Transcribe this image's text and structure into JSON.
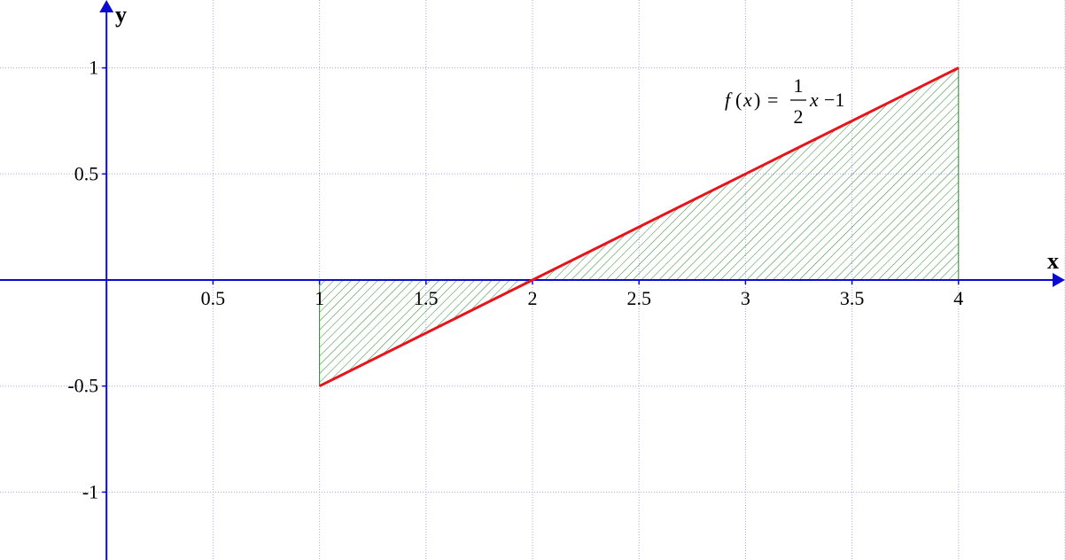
{
  "chart_data": {
    "type": "line",
    "title": "",
    "xlabel": "x",
    "ylabel": "y",
    "xlim": [
      -0.5,
      4.5
    ],
    "ylim": [
      -1.32,
      1.32
    ],
    "grid": true,
    "x_ticks": [
      {
        "value": 0.5,
        "label": "0.5"
      },
      {
        "value": 1,
        "label": "1"
      },
      {
        "value": 1.5,
        "label": "1.5"
      },
      {
        "value": 2,
        "label": "2"
      },
      {
        "value": 2.5,
        "label": "2.5"
      },
      {
        "value": 3,
        "label": "3"
      },
      {
        "value": 3.5,
        "label": "3.5"
      },
      {
        "value": 4,
        "label": "4"
      }
    ],
    "y_ticks": [
      {
        "value": 1,
        "label": "1"
      },
      {
        "value": 0.5,
        "label": "0.5"
      },
      {
        "value": -0.5,
        "label": "-0.5"
      },
      {
        "value": -1,
        "label": "-1"
      }
    ],
    "series": [
      {
        "x": [
          1,
          2,
          3,
          4
        ],
        "y": [
          -0.5,
          0,
          0.5,
          1
        ],
        "color": "#e8141c"
      }
    ],
    "shaded_region": {
      "x_from": 1,
      "x_to": 4,
      "between": "f(x) and x-axis",
      "pattern": "hatched",
      "color": "#2e8b2e"
    },
    "annotation": {
      "lhs_f": "f",
      "lhs_open": "(",
      "lhs_x": "x",
      "lhs_close": ")",
      "equals": "=",
      "frac_num": "1",
      "frac_den": "2",
      "rhs_x": "x",
      "rhs_minus_one": "−1"
    }
  },
  "colors": {
    "axis": "#0a0ad2",
    "grid": "#a8a8e6",
    "curve": "#e8141c",
    "fill": "#2e8b2e"
  }
}
